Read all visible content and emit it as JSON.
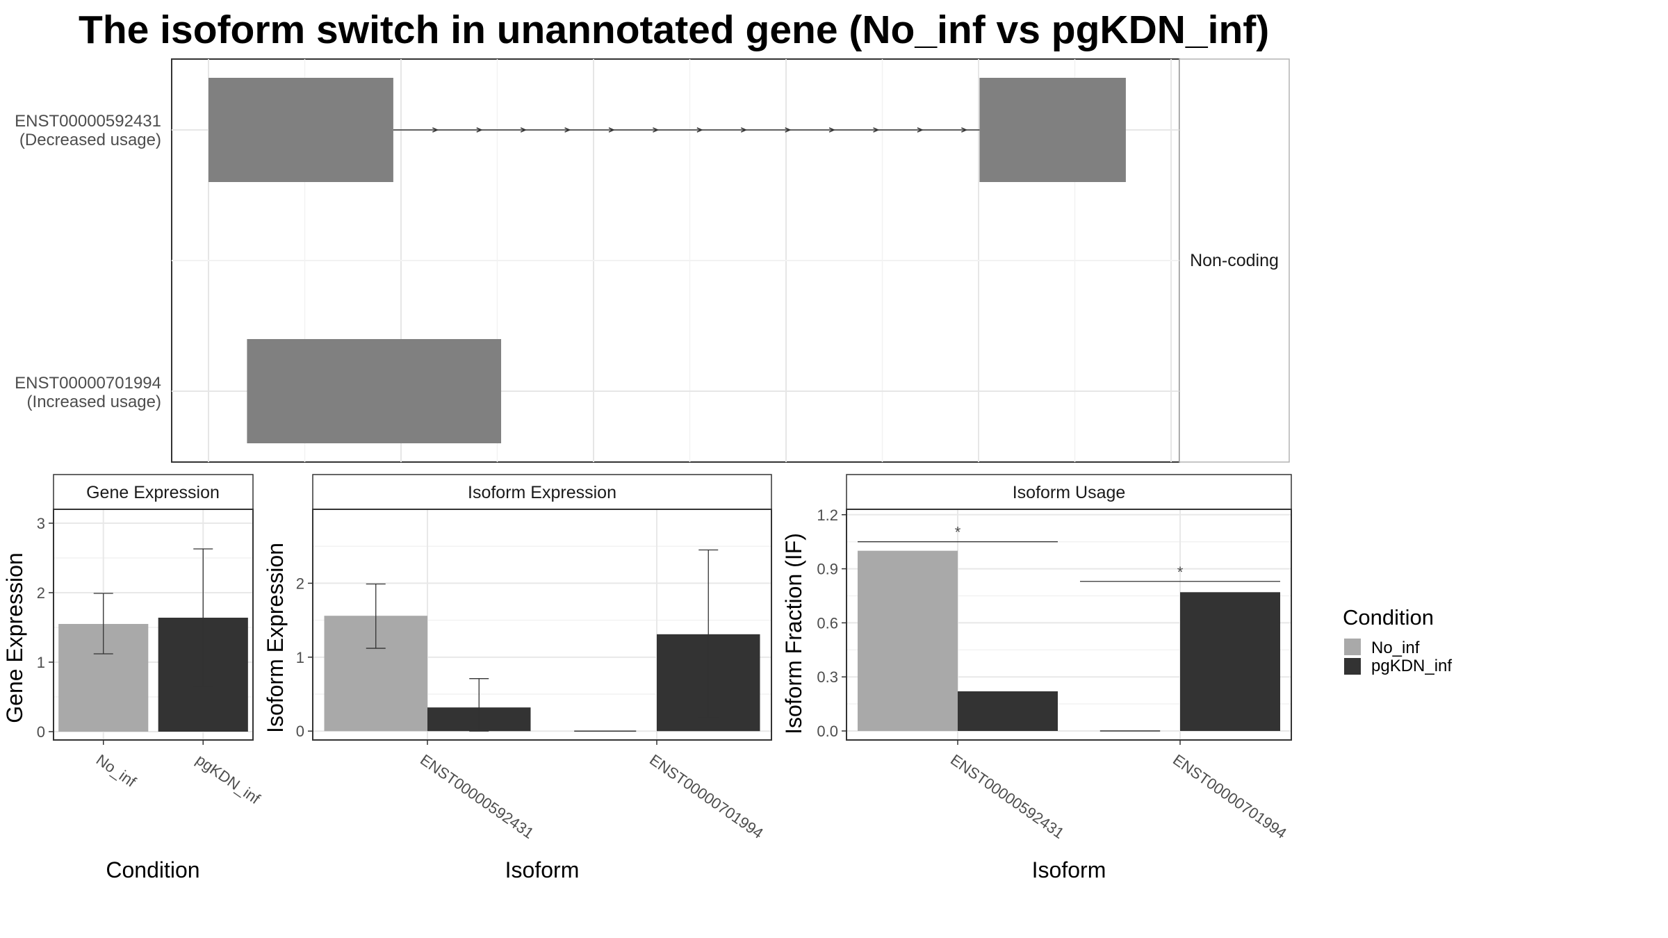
{
  "title": "The isoform switch in unannotated gene (No_inf vs pgKDN_inf)",
  "colors": {
    "No_inf": "#a9a9a9",
    "pgKDN_inf": "#333333",
    "transcript": "#808080"
  },
  "legend": {
    "title": "Condition",
    "entries": [
      {
        "label": "No_inf",
        "color": "#a9a9a9"
      },
      {
        "label": "pgKDN_inf",
        "color": "#333333"
      }
    ]
  },
  "chart_data": [
    {
      "type": "transcript_structure",
      "facet_label": "Non-coding",
      "transcripts": [
        {
          "id": "ENST00000592431",
          "label_line1": "ENST00000592431",
          "label_line2": "(Decreased usage)",
          "exons": [
            [
              0.0,
              0.192
            ],
            [
              0.801,
              0.953
            ]
          ],
          "intron_strand": "+"
        },
        {
          "id": "ENST00000701994",
          "label_line1": "ENST00000701994",
          "label_line2": "(Increased usage)",
          "exons": [
            [
              0.04,
              0.304
            ]
          ]
        }
      ]
    },
    {
      "type": "bar",
      "panel": "Gene Expression",
      "xlabel": "Condition",
      "ylabel": "Gene Expression",
      "ylim": [
        -0.12,
        3.2
      ],
      "yticks": [
        "0",
        "1",
        "2",
        "3"
      ],
      "categories": [
        "No_inf",
        "pgKDN_inf"
      ],
      "values": [
        1.55,
        1.64
      ],
      "error_low": [
        1.12,
        0.65
      ],
      "error_high": [
        1.99,
        2.63
      ]
    },
    {
      "type": "bar",
      "panel": "Isoform Expression",
      "xlabel": "Isoform",
      "ylabel": "Isoform Expression",
      "ylim": [
        -0.12,
        3.0
      ],
      "yticks": [
        "0",
        "1",
        "2"
      ],
      "categories": [
        "ENST00000592431",
        "ENST00000701994"
      ],
      "series": [
        {
          "name": "No_inf",
          "values": [
            1.56,
            0.0
          ],
          "error_low": [
            1.12,
            0.0
          ],
          "error_high": [
            1.99,
            0.0
          ]
        },
        {
          "name": "pgKDN_inf",
          "values": [
            0.32,
            1.31
          ],
          "error_low": [
            0.0,
            0.18
          ],
          "error_high": [
            0.71,
            2.45
          ]
        }
      ]
    },
    {
      "type": "bar",
      "panel": "Isoform Usage",
      "xlabel": "Isoform",
      "ylabel": "Isoform Fraction (IF)",
      "ylim": [
        -0.05,
        1.23
      ],
      "yticks": [
        "0.0",
        "0.3",
        "0.6",
        "0.9",
        "1.2"
      ],
      "categories": [
        "ENST00000592431",
        "ENST00000701994"
      ],
      "series": [
        {
          "name": "No_inf",
          "values": [
            1.0,
            0.0
          ]
        },
        {
          "name": "pgKDN_inf",
          "values": [
            0.22,
            0.77
          ]
        }
      ],
      "significance": [
        {
          "category": "ENST00000592431",
          "label": "*",
          "y": 1.05
        },
        {
          "category": "ENST00000701994",
          "label": "*",
          "y": 0.83
        }
      ]
    }
  ]
}
